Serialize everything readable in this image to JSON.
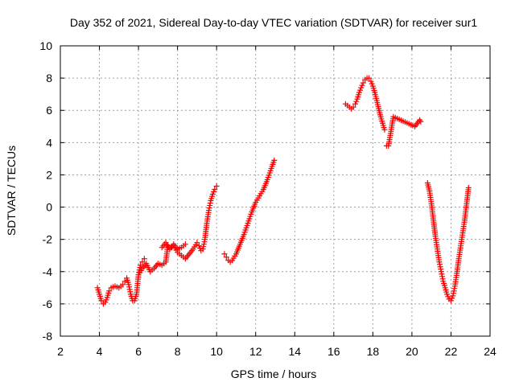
{
  "chart_data": {
    "type": "scatter",
    "title": "Day 352 of 2021, Sidereal Day-to-day VTEC variation (SDTVAR) for receiver sur1",
    "xlabel": "GPS time / hours",
    "ylabel": "SDTVAR / TECUs",
    "xlim": [
      2,
      24
    ],
    "ylim": [
      -8,
      10
    ],
    "xticks": [
      2,
      4,
      6,
      8,
      10,
      12,
      14,
      16,
      18,
      20,
      22,
      24
    ],
    "yticks": [
      -8,
      -6,
      -4,
      -2,
      0,
      2,
      4,
      6,
      8,
      10
    ],
    "grid": true,
    "marker": "+",
    "color": "#ff0000",
    "series": [
      {
        "name": "segment-1",
        "x": [
          3.9,
          4.0,
          4.1,
          4.2,
          4.3,
          4.4,
          4.5,
          4.6,
          4.8,
          5.0,
          5.2,
          5.3,
          5.4,
          5.5,
          5.6,
          5.7,
          5.8,
          5.9,
          6.0,
          6.1,
          6.2,
          6.3
        ],
        "y": [
          -5.0,
          -5.4,
          -5.8,
          -6.0,
          -5.9,
          -5.6,
          -5.2,
          -5.0,
          -4.9,
          -5.0,
          -4.8,
          -4.6,
          -4.4,
          -4.8,
          -5.4,
          -5.8,
          -5.8,
          -5.4,
          -4.2,
          -3.6,
          -3.4,
          -3.2
        ]
      },
      {
        "name": "segment-2",
        "x": [
          6.0,
          6.2,
          6.4,
          6.6,
          6.8,
          7.0,
          7.2,
          7.4,
          7.5,
          7.6,
          7.8,
          8.0,
          8.2,
          8.4
        ],
        "y": [
          -4.2,
          -3.8,
          -3.5,
          -4.0,
          -3.8,
          -3.5,
          -3.6,
          -3.4,
          -2.4,
          -2.6,
          -2.3,
          -2.6,
          -2.5,
          -2.3
        ]
      },
      {
        "name": "segment-3",
        "x": [
          7.2,
          7.4,
          7.6,
          7.8,
          8.0,
          8.2,
          8.4,
          8.6,
          8.8,
          9.0,
          9.1,
          9.2,
          9.3,
          9.4,
          9.5,
          9.6,
          9.7,
          9.8,
          9.9,
          10.0
        ],
        "y": [
          -2.5,
          -2.2,
          -2.6,
          -2.4,
          -2.8,
          -3.0,
          -3.2,
          -2.9,
          -2.6,
          -2.2,
          -2.4,
          -2.7,
          -2.6,
          -2.0,
          -1.0,
          -0.2,
          0.4,
          0.8,
          1.1,
          1.3
        ]
      },
      {
        "name": "segment-4",
        "x": [
          10.4,
          10.5,
          10.6,
          10.7,
          10.8,
          11.0,
          11.2,
          11.4,
          11.6,
          11.8,
          12.0,
          12.2,
          12.4,
          12.6,
          12.8,
          12.95
        ],
        "y": [
          -2.9,
          -3.1,
          -3.3,
          -3.4,
          -3.3,
          -2.9,
          -2.3,
          -1.7,
          -1.0,
          -0.3,
          0.3,
          0.7,
          1.1,
          1.7,
          2.4,
          2.9
        ]
      },
      {
        "name": "segment-5",
        "x": [
          16.6,
          16.7,
          16.8,
          16.9,
          17.0,
          17.1,
          17.2,
          17.3,
          17.4,
          17.5,
          17.6,
          17.7,
          17.8,
          17.9,
          18.0,
          18.1,
          18.2,
          18.3,
          18.4,
          18.5,
          18.6
        ],
        "y": [
          6.4,
          6.3,
          6.2,
          6.1,
          6.2,
          6.4,
          6.7,
          7.1,
          7.4,
          7.7,
          7.9,
          8.0,
          8.0,
          7.8,
          7.5,
          7.1,
          6.6,
          6.1,
          5.6,
          5.2,
          4.8
        ]
      },
      {
        "name": "segment-6",
        "x": [
          18.7,
          18.8,
          19.05,
          20.15,
          20.4,
          20.45
        ],
        "y": [
          3.8,
          3.8,
          5.6,
          5.0,
          5.4,
          5.3
        ]
      },
      {
        "name": "segment-7",
        "x": [
          20.8,
          20.9,
          21.0,
          21.1,
          21.2,
          21.3,
          21.4,
          21.5,
          21.6,
          21.7,
          21.8,
          21.9,
          22.0,
          22.1,
          22.2,
          22.3,
          22.4,
          22.5,
          22.6,
          22.7,
          22.8,
          22.9
        ],
        "y": [
          1.5,
          1.0,
          0.2,
          -0.8,
          -1.8,
          -2.6,
          -3.4,
          -4.0,
          -4.6,
          -5.0,
          -5.4,
          -5.7,
          -5.8,
          -5.5,
          -4.9,
          -4.1,
          -3.2,
          -2.4,
          -1.6,
          -0.8,
          0.2,
          1.2
        ]
      }
    ]
  }
}
